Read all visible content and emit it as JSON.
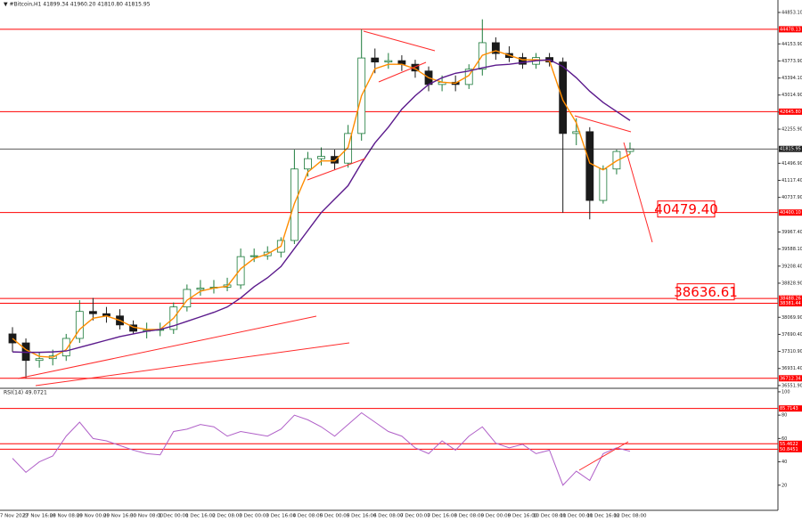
{
  "header": "▼ #Bitcoin,H1  41899.34 41960.20 41810.80 41815.95",
  "chart_data": [
    {
      "type": "candlestick",
      "categories": [
        "27 Nov 2023",
        null,
        "27 Nov 16:00",
        null,
        "28 Nov 08:00",
        null,
        "29 Nov 00:00",
        null,
        "29 Nov 16:00",
        null,
        "30 Nov 08:00",
        null,
        "1 Dec 00:00",
        null,
        "1 Dec 16:00",
        null,
        "2 Dec 08:00",
        null,
        "3 Dec 00:00",
        null,
        "3 Dec 16:00",
        null,
        "4 Dec 08:00",
        null,
        "5 Dec 00:00",
        null,
        "5 Dec 16:00",
        null,
        "6 Dec 08:00",
        null,
        "7 Dec 00:00",
        null,
        "7 Dec 16:00",
        null,
        "8 Dec 08:00",
        null,
        "9 Dec 00:00",
        null,
        "9 Dec 16:00",
        null,
        "10 Dec 08:00",
        null,
        "11 Dec 00:00",
        null,
        "11 Dec 16:00",
        null,
        "12 Dec 08:00"
      ],
      "open": [
        37700,
        37500,
        37110,
        37150,
        37210,
        37600,
        38200,
        38150,
        38100,
        37900,
        37760,
        37780,
        37800,
        38300,
        38690,
        38720,
        38740,
        38790,
        39420,
        39440,
        39520,
        39780,
        41370,
        41600,
        41650,
        41500,
        42160,
        43840,
        43750,
        43780,
        43700,
        43550,
        43250,
        43300,
        43250,
        43590,
        44180,
        43940,
        43850,
        43700,
        43850,
        43750,
        42160,
        42200,
        40670,
        41370,
        41760
      ],
      "high": [
        37850,
        37600,
        37300,
        37350,
        37700,
        38450,
        38500,
        38300,
        38250,
        38000,
        37950,
        37950,
        38400,
        38800,
        38900,
        38900,
        38950,
        39600,
        39600,
        39650,
        39850,
        41800,
        41750,
        41850,
        41800,
        42350,
        44480,
        44050,
        43950,
        43900,
        43800,
        43650,
        43450,
        43450,
        43700,
        44700,
        44300,
        44100,
        43950,
        43950,
        43950,
        43850,
        42500,
        42300,
        41450,
        41800,
        41960
      ],
      "low": [
        37300,
        36720,
        36950,
        37000,
        37100,
        37500,
        38000,
        37950,
        37800,
        37700,
        37600,
        37650,
        37700,
        38200,
        38550,
        38600,
        38650,
        38700,
        39300,
        39350,
        39400,
        39700,
        41200,
        41450,
        41350,
        41400,
        42000,
        43500,
        43600,
        43550,
        43400,
        43100,
        43100,
        43100,
        43150,
        43450,
        43800,
        43750,
        43600,
        43600,
        43650,
        40400,
        41900,
        40250,
        40600,
        41250,
        41700
      ],
      "close": [
        37500,
        37110,
        37150,
        37210,
        37600,
        38200,
        38150,
        38100,
        37900,
        37760,
        37780,
        37800,
        38300,
        38690,
        38720,
        38740,
        38790,
        39420,
        39440,
        39520,
        39780,
        41370,
        41600,
        41650,
        41500,
        42160,
        43840,
        43750,
        43780,
        43700,
        43550,
        43250,
        43300,
        43250,
        43590,
        44180,
        43940,
        43850,
        43700,
        43850,
        43750,
        42160,
        42200,
        40670,
        41370,
        41760,
        41815.95
      ],
      "up_color": "#1b7a3a",
      "down_color": "#1a1a1a",
      "overlays": [
        {
          "color": "#ff8c00",
          "values": [
            37600,
            37350,
            37200,
            37180,
            37350,
            37800,
            38050,
            38100,
            38000,
            37850,
            37800,
            37800,
            38050,
            38450,
            38650,
            38720,
            38760,
            39150,
            39380,
            39480,
            39650,
            40600,
            41300,
            41550,
            41550,
            41850,
            43000,
            43600,
            43700,
            43700,
            43600,
            43400,
            43300,
            43280,
            43450,
            43900,
            44000,
            43900,
            43800,
            43800,
            43780,
            42900,
            42400,
            41500,
            41350,
            41550,
            41700
          ]
        },
        {
          "color": "#5b1a8c",
          "values": [
            37300,
            37290,
            37290,
            37300,
            37320,
            37400,
            37480,
            37560,
            37640,
            37700,
            37760,
            37800,
            37880,
            37980,
            38080,
            38180,
            38300,
            38500,
            38750,
            38950,
            39200,
            39600,
            40000,
            40400,
            40700,
            41000,
            41500,
            41950,
            42300,
            42700,
            43000,
            43250,
            43400,
            43500,
            43550,
            43620,
            43680,
            43700,
            43740,
            43780,
            43800,
            43650,
            43400,
            43100,
            42850,
            42650,
            42450
          ]
        }
      ],
      "ylim": [
        36490,
        45130
      ],
      "yticks": [
        {
          "value": 44853.1,
          "label": "44853.10"
        },
        {
          "value": 44153.9,
          "label": "44153.90"
        },
        {
          "value": 43773.9,
          "label": "43773.90"
        },
        {
          "value": 43394.1,
          "label": "43394.10"
        },
        {
          "value": 43014.9,
          "label": "43014.90"
        },
        {
          "value": 42635.1,
          "label": "42635.10"
        },
        {
          "value": 42255.9,
          "label": "42255.90"
        },
        {
          "value": 41496.9,
          "label": "41496.90"
        },
        {
          "value": 41117.4,
          "label": "41117.40"
        },
        {
          "value": 40737.9,
          "label": "40737.90"
        },
        {
          "value": 39967.4,
          "label": "39967.40"
        },
        {
          "value": 39588.1,
          "label": "39588.10"
        },
        {
          "value": 39208.4,
          "label": "39208.40"
        },
        {
          "value": 38828.9,
          "label": "38828.90"
        },
        {
          "value": 38069.9,
          "label": "38069.90"
        },
        {
          "value": 37690.4,
          "label": "37690.40"
        },
        {
          "value": 37310.9,
          "label": "37310.90"
        },
        {
          "value": 36931.4,
          "label": "36931.40"
        },
        {
          "value": 36551.9,
          "label": "36551.90"
        }
      ],
      "levels": [
        {
          "value": 44478.13,
          "label": "44478.13"
        },
        {
          "value": 42645.8,
          "label": "42645.80"
        },
        {
          "value": 40400.1,
          "label": "40400.10"
        },
        {
          "value": 38488.26,
          "label": "38488.26"
        },
        {
          "value": 38381.44,
          "label": "38381.44"
        },
        {
          "value": 36712.34,
          "label": "36712.34"
        }
      ],
      "level_color": "#ff0000",
      "last_price": {
        "value": 41815.95,
        "label": "41815.95"
      },
      "annotations": [
        {
          "value": 40479.4,
          "label": "40479.40"
        },
        {
          "value": 38636.61,
          "label": "38636.61"
        }
      ]
    },
    {
      "type": "line",
      "title": "RSI(14) 49.0721",
      "color": "#b060c8",
      "values": [
        43,
        31,
        40,
        45,
        62,
        74,
        60,
        58,
        54,
        50,
        47,
        46,
        66,
        68,
        72,
        70,
        62,
        66,
        64,
        62,
        68,
        80,
        76,
        70,
        62,
        72,
        82,
        74,
        66,
        62,
        52,
        47,
        58,
        50,
        62,
        70,
        56,
        52,
        55,
        47,
        50,
        20,
        32,
        24,
        47,
        52,
        49.0721
      ],
      "ylim": [
        -2.3,
        103
      ],
      "yticks": [
        20,
        40,
        60,
        80,
        100
      ],
      "levels": [
        85.7143,
        55.4622,
        50.8451
      ],
      "level_color": "#ff0000"
    }
  ]
}
